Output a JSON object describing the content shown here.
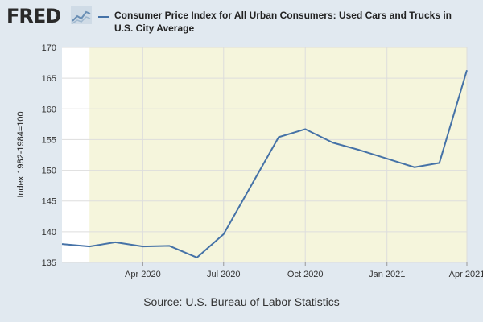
{
  "header": {
    "logo_text": "FRED",
    "logo_icon": "trend-chart-icon",
    "legend_label": "Consumer Price Index for All Urban Consumers: Used Cars and Trucks in U.S. City Average"
  },
  "colors": {
    "background": "#e1e9f0",
    "plot_area": "#ffffff",
    "recession_shade": "#f5f5dc",
    "series_line": "#4572a7",
    "grid": "#dddddd"
  },
  "source_text": "Source: U.S. Bureau of Labor Statistics",
  "chart_data": {
    "type": "line",
    "title": "",
    "ylabel": "Index 1982-1984=100",
    "xlabel": "",
    "ylim": [
      135,
      170
    ],
    "yticks": [
      135,
      140,
      145,
      150,
      155,
      160,
      165,
      170
    ],
    "xlim": [
      "2020-01-01",
      "2021-04-01"
    ],
    "xticks": [
      {
        "date": "2020-04-01",
        "label": "Apr 2020"
      },
      {
        "date": "2020-07-01",
        "label": "Jul 2020"
      },
      {
        "date": "2020-10-01",
        "label": "Oct 2020"
      },
      {
        "date": "2021-01-01",
        "label": "Jan 2021"
      },
      {
        "date": "2021-04-01",
        "label": "Apr 2021"
      }
    ],
    "grid": true,
    "recession_shading": {
      "start": "2020-02-01",
      "end": "2021-04-01"
    },
    "series": [
      {
        "name": "Consumer Price Index for All Urban Consumers: Used Cars and Trucks in U.S. City Average",
        "x": [
          "2020-01-01",
          "2020-02-01",
          "2020-03-01",
          "2020-04-01",
          "2020-05-01",
          "2020-06-01",
          "2020-07-01",
          "2020-08-01",
          "2020-09-01",
          "2020-10-01",
          "2020-11-01",
          "2020-12-01",
          "2021-01-01",
          "2021-02-01",
          "2021-03-01",
          "2021-04-01"
        ],
        "values": [
          138.0,
          137.6,
          138.3,
          137.6,
          137.7,
          135.8,
          139.6,
          147.5,
          155.4,
          156.7,
          154.5,
          153.3,
          151.9,
          150.5,
          151.2,
          166.3
        ]
      }
    ]
  }
}
